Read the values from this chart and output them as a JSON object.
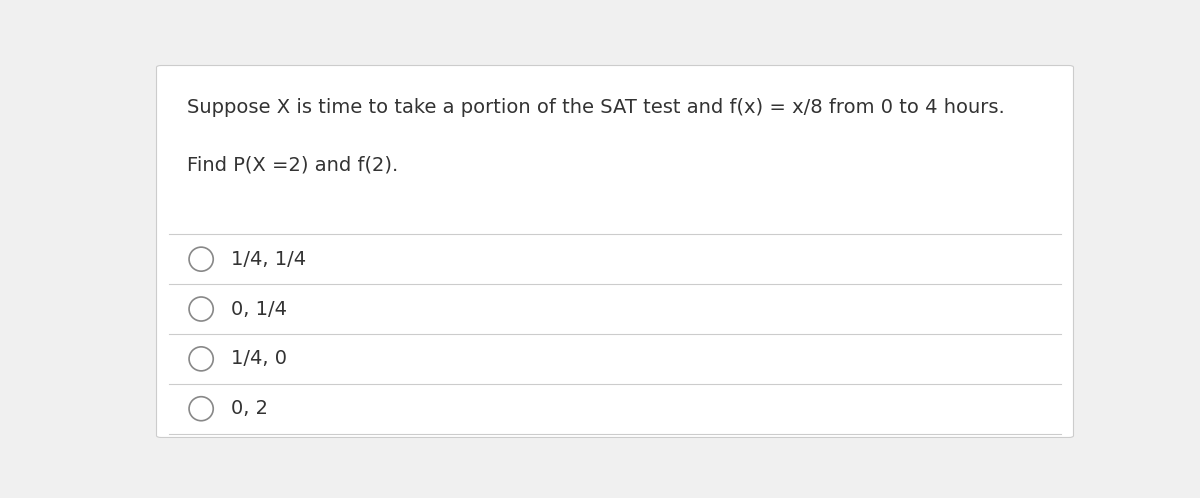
{
  "background_color": "#f0f0f0",
  "card_color": "#ffffff",
  "question_line1": "Suppose X is time to take a portion of the SAT test and f(x) = x/8 from 0 to 4 hours.",
  "question_line2": "Find P(X =2) and f(2).",
  "choices": [
    "1/4, 1/4",
    "0, 1/4",
    "1/4, 0",
    "0, 2"
  ],
  "divider_color": "#cccccc",
  "text_color": "#333333",
  "circle_edge_color": "#888888",
  "font_size_question": 14,
  "font_size_choices": 14
}
